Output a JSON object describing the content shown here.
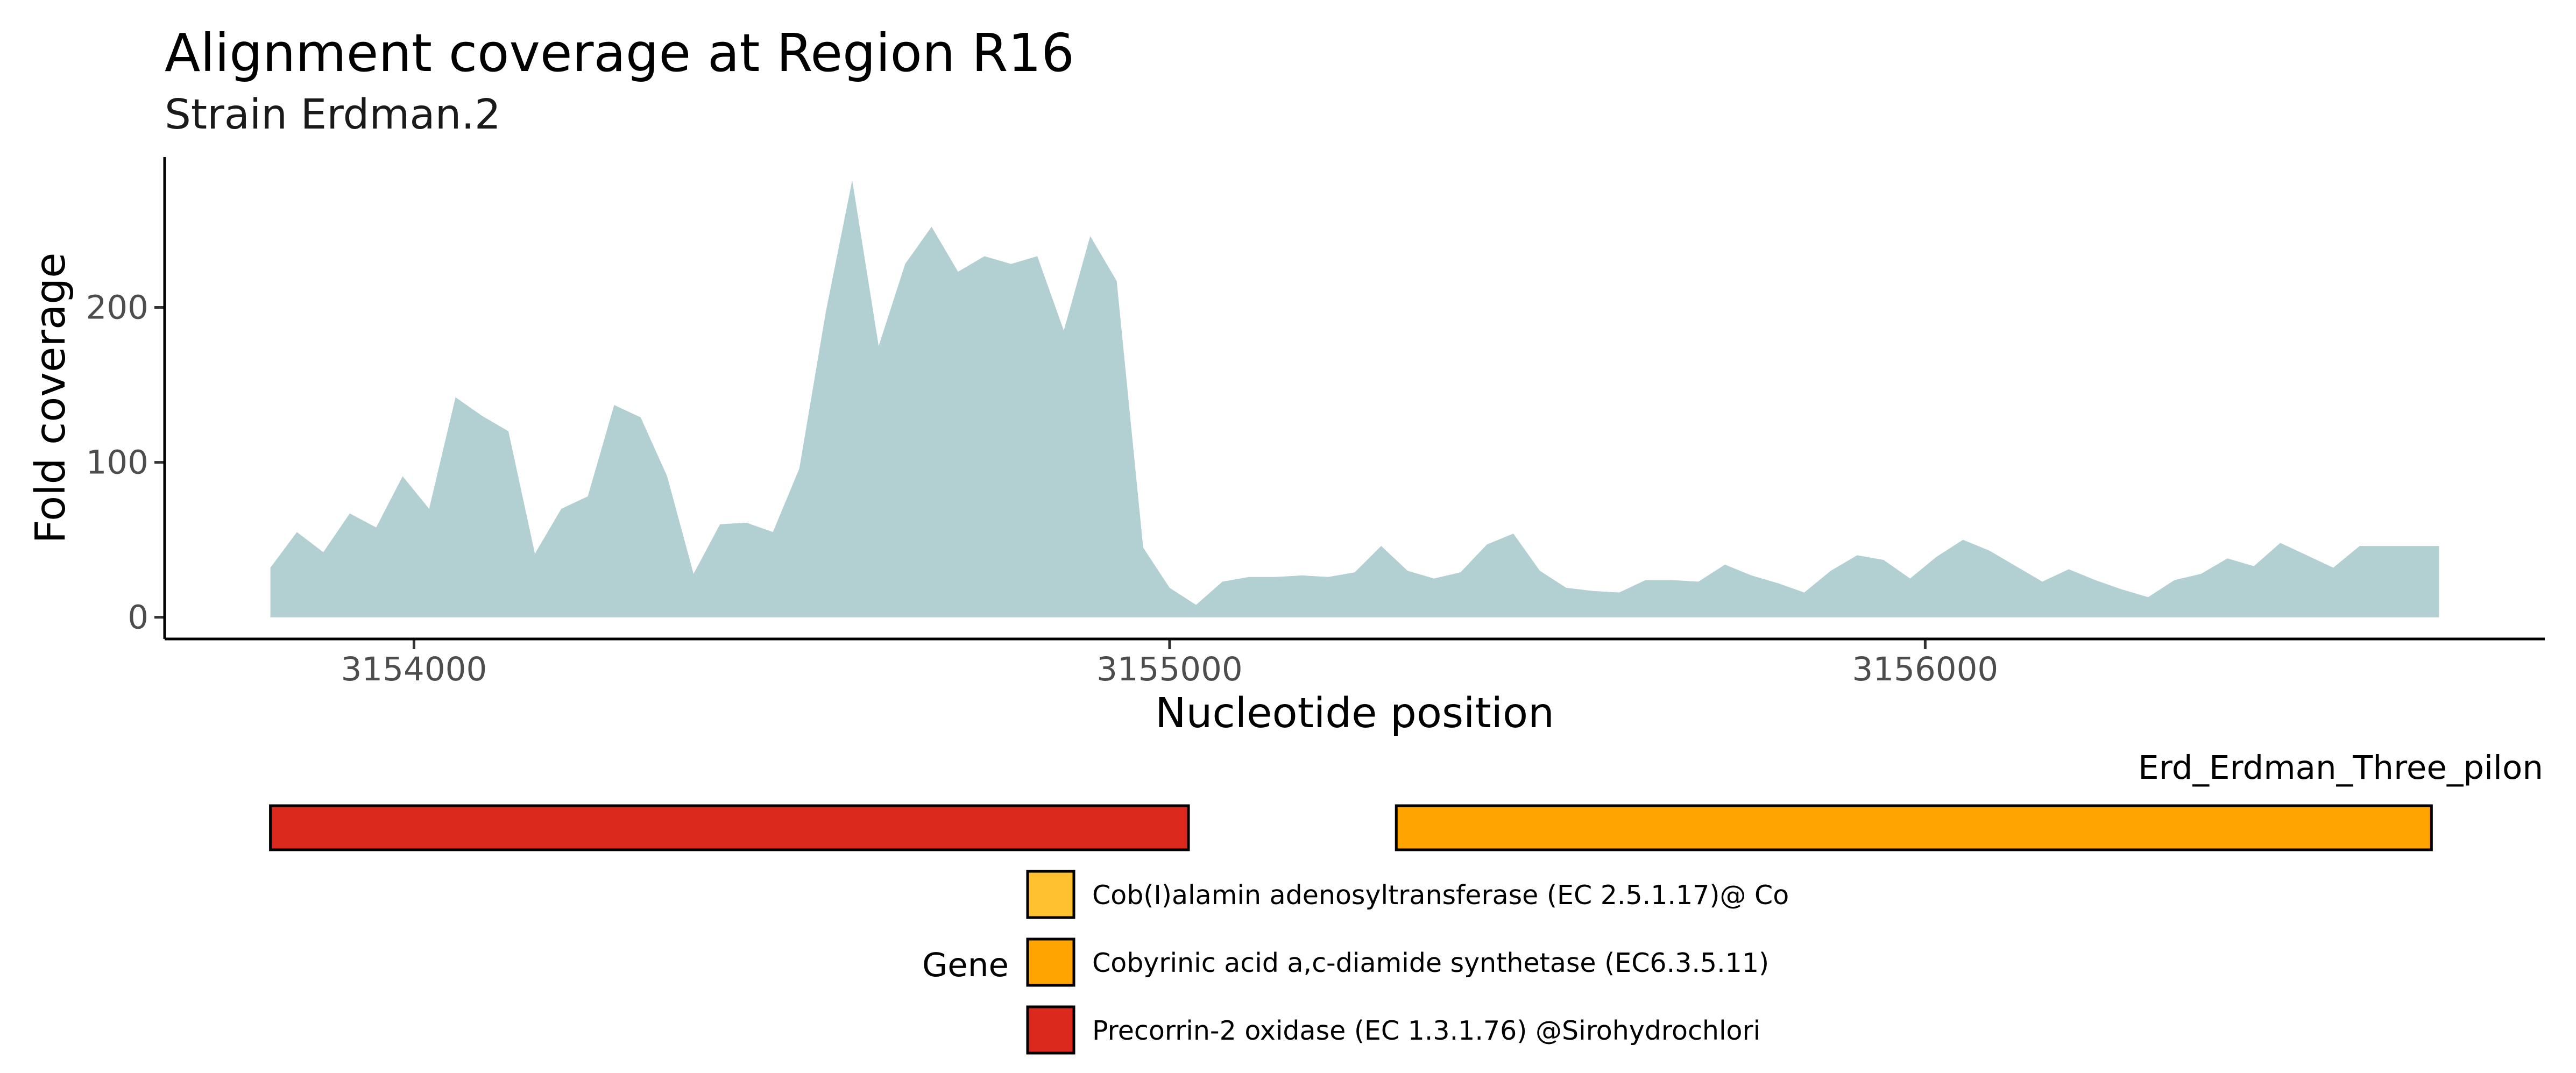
{
  "chart_data": {
    "type": "area",
    "title": "Alignment coverage at Region R16",
    "subtitle": "Strain Erdman.2",
    "xlabel": "Nucleotide position",
    "ylabel": "Fold coverage",
    "xlim": [
      3153670,
      3156820
    ],
    "ylim": [
      -14,
      297
    ],
    "x_ticks": [
      3154000,
      3155000,
      3156000
    ],
    "y_ticks": [
      0,
      100,
      200
    ],
    "grid": false,
    "fill_color": "#b2cfd1",
    "series": [
      {
        "x": [
          3153810,
          3153845,
          3153880,
          3153915,
          3153950,
          3153985,
          3154020,
          3154055,
          3154090,
          3154125,
          3154160,
          3154195,
          3154230,
          3154265,
          3154300,
          3154335,
          3154370,
          3154405,
          3154440,
          3154475,
          3154510,
          3154545,
          3154580,
          3154615,
          3154650,
          3154685,
          3154720,
          3154755,
          3154790,
          3154825,
          3154860,
          3154895,
          3154930,
          3154965,
          3155000,
          3155035,
          3155070,
          3155105,
          3155140,
          3155175,
          3155210,
          3155245,
          3155280,
          3155315,
          3155350,
          3155385,
          3155420,
          3155455,
          3155490,
          3155525,
          3155560,
          3155595,
          3155630,
          3155665,
          3155700,
          3155735,
          3155770,
          3155805,
          3155840,
          3155875,
          3155910,
          3155945,
          3155980,
          3156015,
          3156050,
          3156085,
          3156120,
          3156155,
          3156190,
          3156225,
          3156260,
          3156295,
          3156330,
          3156365,
          3156400,
          3156435,
          3156470,
          3156505,
          3156540,
          3156575,
          3156610,
          3156645,
          3156680
        ],
        "y": [
          32,
          55,
          42,
          67,
          58,
          91,
          70,
          142,
          130,
          120,
          41,
          70,
          78,
          137,
          129,
          91,
          28,
          60,
          61,
          55,
          96,
          197,
          282,
          175,
          228,
          252,
          223,
          233,
          228,
          233,
          185,
          246,
          217,
          45,
          19,
          8,
          23,
          26,
          26,
          27,
          26,
          29,
          46,
          30,
          25,
          29,
          47,
          54,
          30,
          19,
          17,
          16,
          24,
          24,
          23,
          34,
          27,
          22,
          16,
          30,
          40,
          37,
          25,
          39,
          50,
          43,
          33,
          23,
          31,
          24,
          18,
          13,
          24,
          28,
          38,
          33,
          48,
          40,
          32,
          46,
          46,
          46,
          46
        ]
      }
    ],
    "genes": [
      {
        "name": "Precorrin-2 oxidase (EC 1.3.1.76) @Sirohydrochlori",
        "start": 3153810,
        "end": 3155025,
        "color": "#dc291e"
      },
      {
        "name": "Cobyrinic acid a,c-diamide synthetase (EC6.3.5.11)",
        "start": 3155300,
        "end": 3156670,
        "color": "#ffa400"
      }
    ],
    "track_label": "Erd_Erdman_Three_pilon",
    "legend": {
      "title": "Gene",
      "placement": "bottom",
      "items": [
        {
          "label": "Cob(I)alamin adenosyltransferase (EC 2.5.1.17)@ Co",
          "color": "#ffc12f"
        },
        {
          "label": "Cobyrinic acid a,c-diamide synthetase (EC6.3.5.11)",
          "color": "#ffa400"
        },
        {
          "label": "Precorrin-2 oxidase (EC 1.3.1.76) @Sirohydrochlori",
          "color": "#dc291e"
        }
      ]
    }
  }
}
